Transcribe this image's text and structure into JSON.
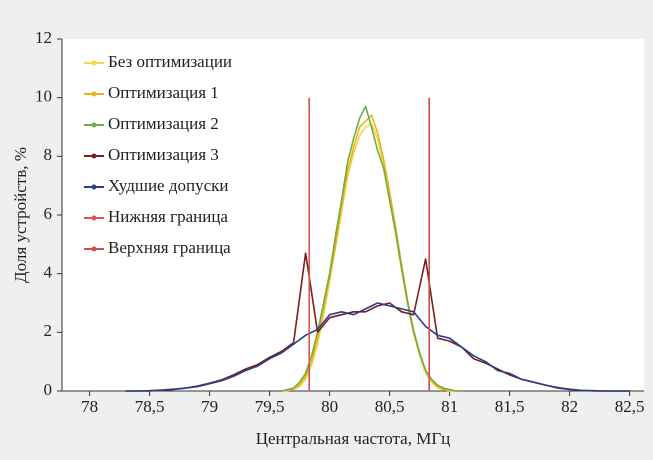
{
  "chart_data": {
    "type": "line",
    "ylabel": "Доля устройств, %",
    "xlabel": "Центральная частота, МГц",
    "xlim": [
      77.77,
      82.62
    ],
    "ylim": [
      0,
      12
    ],
    "xticks": [
      78,
      {
        "value": 78.5,
        "label": "78,5"
      },
      79,
      {
        "value": 79.5,
        "label": "79,5"
      },
      80,
      {
        "value": 80.5,
        "label": "80,5"
      },
      81,
      {
        "value": 81.5,
        "label": "81,5"
      },
      82,
      {
        "value": 82.5,
        "label": "82,5"
      }
    ],
    "yticks": [
      0,
      2,
      4,
      6,
      8,
      10,
      12
    ],
    "legend": "upper left",
    "series": [
      {
        "name": "Без оптимизации",
        "color": "#f3d651",
        "x": [
          79.6,
          79.65,
          79.7,
          79.75,
          79.8,
          79.85,
          79.9,
          79.95,
          80.0,
          80.05,
          80.1,
          80.15,
          80.2,
          80.25,
          80.3,
          80.35,
          80.4,
          80.45,
          80.5,
          80.55,
          80.6,
          80.65,
          80.7,
          80.75,
          80.8,
          80.85,
          80.9,
          80.95,
          81.0,
          81.05,
          81.1
        ],
        "values": [
          0,
          0.02,
          0.05,
          0.15,
          0.4,
          0.9,
          1.6,
          2.6,
          3.7,
          4.9,
          6.1,
          7.3,
          8.1,
          8.7,
          9.0,
          9.1,
          8.6,
          7.7,
          6.6,
          5.4,
          4.1,
          3.0,
          2.0,
          1.2,
          0.6,
          0.3,
          0.1,
          0.05,
          0,
          0,
          0
        ]
      },
      {
        "name": "Оптимизация 1",
        "color": "#eeb31a",
        "x": [
          79.6,
          79.65,
          79.7,
          79.75,
          79.8,
          79.85,
          79.9,
          79.95,
          80.0,
          80.05,
          80.1,
          80.15,
          80.2,
          80.25,
          80.3,
          80.35,
          80.4,
          80.45,
          80.5,
          80.55,
          80.6,
          80.65,
          80.7,
          80.75,
          80.8,
          80.85,
          80.9,
          80.95,
          81.0,
          81.05,
          81.1
        ],
        "values": [
          0,
          0.02,
          0.1,
          0.2,
          0.5,
          1.0,
          1.8,
          2.8,
          3.9,
          5.0,
          6.3,
          7.5,
          8.3,
          9.0,
          9.2,
          9.4,
          8.8,
          7.9,
          6.8,
          5.6,
          4.3,
          3.1,
          2.1,
          1.3,
          0.7,
          0.35,
          0.15,
          0.05,
          0.02,
          0,
          0
        ]
      },
      {
        "name": "Оптимизация 2",
        "color": "#6fae45",
        "x": [
          79.6,
          79.65,
          79.7,
          79.75,
          79.8,
          79.85,
          79.9,
          79.95,
          80.0,
          80.05,
          80.1,
          80.15,
          80.2,
          80.25,
          80.3,
          80.35,
          80.4,
          80.45,
          80.5,
          80.55,
          80.6,
          80.65,
          80.7,
          80.75,
          80.8,
          80.85,
          80.9,
          80.95,
          81.0,
          81.05,
          81.1
        ],
        "values": [
          0,
          0.05,
          0.1,
          0.3,
          0.6,
          1.2,
          2.0,
          3.0,
          4.0,
          5.3,
          6.5,
          7.8,
          8.6,
          9.3,
          9.7,
          9.0,
          8.2,
          7.6,
          6.5,
          5.4,
          4.2,
          3.0,
          2.0,
          1.3,
          0.7,
          0.4,
          0.2,
          0.1,
          0.05,
          0,
          0
        ]
      },
      {
        "name": "Оптимизация 3",
        "color": "#7a1f22",
        "x": [
          78.3,
          78.4,
          78.5,
          78.6,
          78.7,
          78.8,
          78.9,
          79.0,
          79.1,
          79.2,
          79.3,
          79.4,
          79.5,
          79.6,
          79.7,
          79.8,
          79.9,
          80.0,
          80.1,
          80.2,
          80.3,
          80.4,
          80.5,
          80.6,
          80.7,
          80.8,
          80.9,
          81.0,
          81.1,
          81.2,
          81.3,
          81.4,
          81.5,
          81.6,
          81.7,
          81.8,
          81.9,
          82.0,
          82.1,
          82.2,
          82.3,
          82.4,
          82.5
        ],
        "values": [
          0,
          0,
          0.01,
          0.03,
          0.06,
          0.1,
          0.17,
          0.27,
          0.38,
          0.55,
          0.75,
          0.9,
          1.15,
          1.35,
          1.65,
          4.7,
          2.0,
          2.5,
          2.6,
          2.7,
          2.7,
          2.9,
          3.0,
          2.7,
          2.6,
          4.5,
          1.8,
          1.7,
          1.5,
          1.1,
          0.95,
          0.75,
          0.55,
          0.4,
          0.3,
          0.2,
          0.12,
          0.06,
          0.02,
          0.01,
          0,
          0,
          0
        ]
      },
      {
        "name": "Худшие допуски",
        "color": "#2a3f8a",
        "x": [
          78.3,
          78.4,
          78.5,
          78.6,
          78.7,
          78.8,
          78.9,
          79.0,
          79.1,
          79.2,
          79.3,
          79.4,
          79.5,
          79.6,
          79.7,
          79.8,
          79.9,
          80.0,
          80.1,
          80.2,
          80.3,
          80.4,
          80.5,
          80.6,
          80.7,
          80.8,
          80.9,
          81.0,
          81.1,
          81.2,
          81.3,
          81.4,
          81.5,
          81.6,
          81.7,
          81.8,
          81.9,
          82.0,
          82.1,
          82.2,
          82.3,
          82.4,
          82.5
        ],
        "values": [
          0,
          0,
          0,
          0.02,
          0.05,
          0.1,
          0.15,
          0.25,
          0.35,
          0.5,
          0.7,
          0.85,
          1.1,
          1.3,
          1.6,
          1.9,
          2.1,
          2.6,
          2.7,
          2.6,
          2.8,
          3.0,
          2.9,
          2.8,
          2.7,
          2.2,
          1.9,
          1.8,
          1.5,
          1.2,
          1.0,
          0.7,
          0.6,
          0.4,
          0.3,
          0.2,
          0.1,
          0.05,
          0.02,
          0,
          0,
          0,
          0
        ]
      },
      {
        "name": "Нижняя граница",
        "color": "#d9534f",
        "x": [
          79.83,
          79.83
        ],
        "values": [
          0,
          10
        ]
      },
      {
        "name": "Верхняя граница",
        "color": "#cf4a4a",
        "x": [
          80.83,
          80.83
        ],
        "values": [
          0,
          10
        ]
      }
    ]
  }
}
